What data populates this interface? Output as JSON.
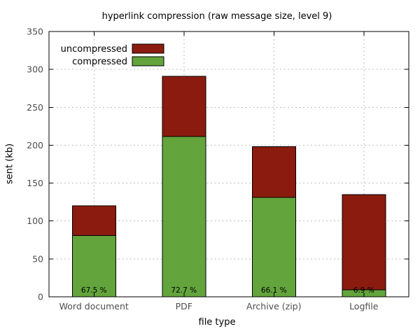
{
  "chart_data": {
    "type": "bar",
    "variant": "stacked-overlay",
    "title": "hyperlink compression (raw message size, level 9)",
    "xlabel": "file type",
    "ylabel": "sent (kb)",
    "ylim": [
      0,
      350
    ],
    "yticks": [
      0,
      50,
      100,
      150,
      200,
      250,
      300,
      350
    ],
    "categories": [
      "Word document",
      "PDF",
      "Archive (zip)",
      "Logfile"
    ],
    "series": [
      {
        "name": "uncompressed",
        "color": "#8b1b0f",
        "values": [
          120,
          291,
          198,
          135
        ]
      },
      {
        "name": "compressed",
        "color": "#63a43c",
        "values": [
          81,
          211.5,
          131,
          9.3
        ]
      }
    ],
    "bar_labels": [
      "67.5 %",
      "72.7 %",
      "66.1 %",
      "6.9 %"
    ],
    "legend": {
      "position": "top-left",
      "entries": [
        "uncompressed",
        "compressed"
      ]
    },
    "grid": true,
    "colors": {
      "grid": "#bdbdbd",
      "axis": "#000000",
      "tick_text": "#4d4d4d",
      "label_text": "#000000",
      "bar_border": "#000000",
      "background": "#ffffff"
    }
  }
}
